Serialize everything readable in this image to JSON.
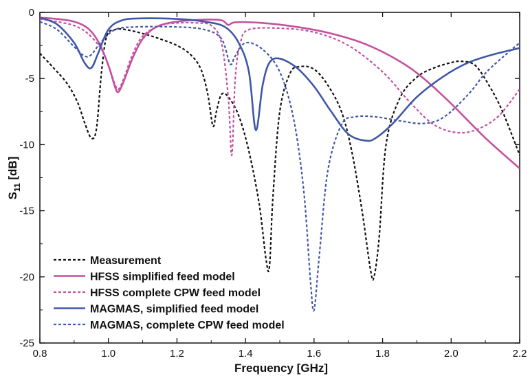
{
  "chart_data": {
    "type": "line",
    "title": "",
    "xlabel": "Frequency [GHz]",
    "ylabel_main": "S",
    "ylabel_sub": "11",
    "ylabel_unit": " [dB]",
    "xlim": [
      0.8,
      2.2
    ],
    "ylim": [
      -25,
      0
    ],
    "xticks": [
      "0.8",
      "1.0",
      "1.2",
      "1.4",
      "1.6",
      "1.8",
      "2.0",
      "2.2"
    ],
    "yticks": [
      "0",
      "-5",
      "-10",
      "-15",
      "-20",
      "-25"
    ],
    "grid": false,
    "legend_position": "bottom-left",
    "colors": {
      "black": "#111111",
      "magenta": "#c3519d",
      "blue": "#3f57a8"
    },
    "series": [
      {
        "name": "Measurement",
        "color": "#111111",
        "dashed": true,
        "points": [
          [
            0.8,
            -3.1
          ],
          [
            0.84,
            -4.2
          ],
          [
            0.88,
            -5.4
          ],
          [
            0.91,
            -6.8
          ],
          [
            0.93,
            -8.3
          ],
          [
            0.95,
            -9.5
          ],
          [
            0.965,
            -8.8
          ],
          [
            0.98,
            -4.5
          ],
          [
            0.995,
            -1.8
          ],
          [
            1.02,
            -1.3
          ],
          [
            1.05,
            -1.3
          ],
          [
            1.1,
            -1.6
          ],
          [
            1.15,
            -2.0
          ],
          [
            1.2,
            -2.5
          ],
          [
            1.24,
            -3.2
          ],
          [
            1.27,
            -4.3
          ],
          [
            1.29,
            -6.2
          ],
          [
            1.305,
            -8.6
          ],
          [
            1.315,
            -7.5
          ],
          [
            1.33,
            -6.2
          ],
          [
            1.35,
            -6.4
          ],
          [
            1.38,
            -7.8
          ],
          [
            1.41,
            -10.5
          ],
          [
            1.44,
            -14.5
          ],
          [
            1.46,
            -18.7
          ],
          [
            1.47,
            -19.2
          ],
          [
            1.48,
            -14.0
          ],
          [
            1.5,
            -7.5
          ],
          [
            1.53,
            -4.6
          ],
          [
            1.56,
            -4.1
          ],
          [
            1.6,
            -4.3
          ],
          [
            1.64,
            -5.5
          ],
          [
            1.68,
            -7.5
          ],
          [
            1.71,
            -10.5
          ],
          [
            1.74,
            -15.0
          ],
          [
            1.765,
            -19.5
          ],
          [
            1.775,
            -20.0
          ],
          [
            1.79,
            -17.0
          ],
          [
            1.81,
            -10.0
          ],
          [
            1.85,
            -6.5
          ],
          [
            1.9,
            -4.9
          ],
          [
            1.95,
            -4.2
          ],
          [
            2.0,
            -3.8
          ],
          [
            2.03,
            -3.7
          ],
          [
            2.07,
            -4.0
          ],
          [
            2.11,
            -5.5
          ],
          [
            2.15,
            -7.5
          ],
          [
            2.2,
            -10.8
          ]
        ]
      },
      {
        "name": "HFSS simplified feed model",
        "color": "#c3519d",
        "dashed": false,
        "points": [
          [
            0.8,
            -0.4
          ],
          [
            0.85,
            -0.5
          ],
          [
            0.9,
            -0.7
          ],
          [
            0.94,
            -1.2
          ],
          [
            0.97,
            -2.2
          ],
          [
            1.0,
            -4.0
          ],
          [
            1.02,
            -5.7
          ],
          [
            1.03,
            -6.0
          ],
          [
            1.045,
            -5.2
          ],
          [
            1.07,
            -3.5
          ],
          [
            1.1,
            -2.0
          ],
          [
            1.14,
            -1.1
          ],
          [
            1.2,
            -0.7
          ],
          [
            1.28,
            -0.55
          ],
          [
            1.33,
            -0.6
          ],
          [
            1.35,
            -0.95
          ],
          [
            1.37,
            -0.75
          ],
          [
            1.45,
            -0.8
          ],
          [
            1.55,
            -1.1
          ],
          [
            1.65,
            -1.6
          ],
          [
            1.75,
            -2.4
          ],
          [
            1.85,
            -3.7
          ],
          [
            1.92,
            -5.0
          ],
          [
            2.0,
            -6.9
          ],
          [
            2.1,
            -9.5
          ],
          [
            2.2,
            -11.8
          ]
        ]
      },
      {
        "name": "HFSS complete CPW feed model",
        "color": "#c3519d",
        "dashed": true,
        "points": [
          [
            0.8,
            -0.5
          ],
          [
            0.85,
            -0.7
          ],
          [
            0.9,
            -1.0
          ],
          [
            0.94,
            -1.6
          ],
          [
            0.98,
            -2.8
          ],
          [
            1.0,
            -4.0
          ],
          [
            1.02,
            -5.5
          ],
          [
            1.03,
            -5.8
          ],
          [
            1.045,
            -5.0
          ],
          [
            1.07,
            -3.2
          ],
          [
            1.1,
            -1.8
          ],
          [
            1.15,
            -1.0
          ],
          [
            1.2,
            -0.8
          ],
          [
            1.26,
            -0.8
          ],
          [
            1.3,
            -1.0
          ],
          [
            1.33,
            -2.3
          ],
          [
            1.35,
            -6.5
          ],
          [
            1.36,
            -10.8
          ],
          [
            1.37,
            -5.0
          ],
          [
            1.385,
            -2.3
          ],
          [
            1.41,
            -1.3
          ],
          [
            1.5,
            -1.2
          ],
          [
            1.6,
            -1.5
          ],
          [
            1.7,
            -2.5
          ],
          [
            1.8,
            -4.5
          ],
          [
            1.88,
            -6.8
          ],
          [
            1.95,
            -8.5
          ],
          [
            2.02,
            -9.1
          ],
          [
            2.08,
            -8.8
          ],
          [
            2.14,
            -7.8
          ],
          [
            2.2,
            -5.8
          ]
        ]
      },
      {
        "name": "MAGMAS, simplified feed model",
        "color": "#3f57a8",
        "dashed": false,
        "points": [
          [
            0.8,
            -0.4
          ],
          [
            0.85,
            -0.9
          ],
          [
            0.9,
            -2.3
          ],
          [
            0.93,
            -3.8
          ],
          [
            0.95,
            -4.2
          ],
          [
            0.97,
            -3.1
          ],
          [
            1.0,
            -1.3
          ],
          [
            1.04,
            -0.6
          ],
          [
            1.1,
            -0.45
          ],
          [
            1.2,
            -0.5
          ],
          [
            1.28,
            -0.7
          ],
          [
            1.34,
            -1.1
          ],
          [
            1.38,
            -2.3
          ],
          [
            1.41,
            -4.5
          ],
          [
            1.43,
            -8.9
          ],
          [
            1.45,
            -5.5
          ],
          [
            1.47,
            -3.8
          ],
          [
            1.5,
            -3.5
          ],
          [
            1.55,
            -4.2
          ],
          [
            1.6,
            -5.6
          ],
          [
            1.65,
            -7.5
          ],
          [
            1.7,
            -9.2
          ],
          [
            1.75,
            -9.7
          ],
          [
            1.78,
            -9.5
          ],
          [
            1.83,
            -8.4
          ],
          [
            1.9,
            -6.4
          ],
          [
            1.98,
            -4.8
          ],
          [
            2.05,
            -3.8
          ],
          [
            2.12,
            -3.2
          ],
          [
            2.2,
            -2.7
          ]
        ]
      },
      {
        "name": "MAGMAS, complete CPW feed model",
        "color": "#3f57a8",
        "dashed": true,
        "points": [
          [
            0.8,
            -0.7
          ],
          [
            0.85,
            -1.3
          ],
          [
            0.9,
            -2.6
          ],
          [
            0.93,
            -3.3
          ],
          [
            0.95,
            -3.2
          ],
          [
            0.98,
            -2.2
          ],
          [
            1.02,
            -1.3
          ],
          [
            1.08,
            -1.1
          ],
          [
            1.2,
            -1.1
          ],
          [
            1.28,
            -1.3
          ],
          [
            1.33,
            -2.0
          ],
          [
            1.355,
            -3.9
          ],
          [
            1.37,
            -3.3
          ],
          [
            1.4,
            -2.3
          ],
          [
            1.45,
            -2.8
          ],
          [
            1.5,
            -4.5
          ],
          [
            1.54,
            -8.0
          ],
          [
            1.57,
            -13.5
          ],
          [
            1.59,
            -20.5
          ],
          [
            1.6,
            -22.5
          ],
          [
            1.615,
            -18.5
          ],
          [
            1.64,
            -12.0
          ],
          [
            1.68,
            -8.5
          ],
          [
            1.72,
            -7.9
          ],
          [
            1.78,
            -7.9
          ],
          [
            1.85,
            -8.2
          ],
          [
            1.92,
            -8.4
          ],
          [
            1.98,
            -7.9
          ],
          [
            2.05,
            -6.2
          ],
          [
            2.1,
            -4.6
          ],
          [
            2.15,
            -3.4
          ],
          [
            2.2,
            -2.3
          ]
        ]
      }
    ]
  }
}
